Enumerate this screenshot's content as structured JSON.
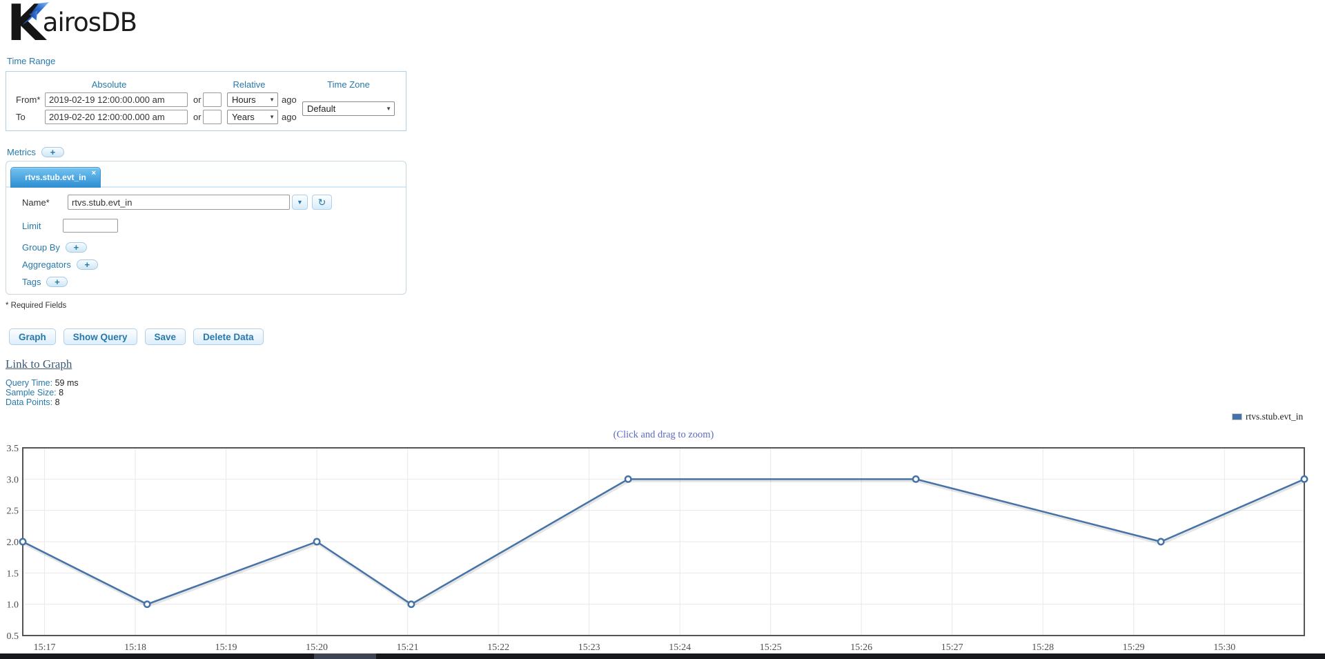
{
  "logo": {
    "k": "K",
    "airos": "airos",
    "db": "DB"
  },
  "icons": {
    "select_arrow": "▼",
    "combo_arrow": "▼",
    "refresh": "↻",
    "close": "×",
    "plus": "+"
  },
  "time_range": {
    "section_label": "Time Range",
    "columns": {
      "absolute": "Absolute",
      "relative": "Relative",
      "timezone": "Time Zone"
    },
    "from": {
      "label": "From*",
      "value": "2019-02-19 12:00:00.000 am",
      "or_label": "or",
      "relative_value": "",
      "unit": "Hours",
      "ago_label": "ago"
    },
    "to": {
      "label": "To",
      "value": "2019-02-20 12:00:00.000 am",
      "or_label": "or",
      "relative_value": "",
      "unit": "Years",
      "ago_label": "ago"
    },
    "timezone_value": "Default"
  },
  "metrics": {
    "section_label": "Metrics",
    "tab_title": "rtvs.stub.evt_in",
    "name_label": "Name*",
    "name_value": "rtvs.stub.evt_in",
    "limit_label": "Limit",
    "limit_value": "",
    "group_by_label": "Group By",
    "aggregators_label": "Aggregators",
    "tags_label": "Tags"
  },
  "required_note": "* Required Fields",
  "actions": {
    "graph": "Graph",
    "show_query": "Show Query",
    "save": "Save",
    "delete_data": "Delete Data"
  },
  "link_to_graph": "Link to Graph",
  "query_info": {
    "query_time_label": "Query Time:",
    "query_time_value": "59 ms",
    "sample_size_label": "Sample Size:",
    "sample_size_value": "8",
    "data_points_label": "Data Points:",
    "data_points_value": "8"
  },
  "chart_data": {
    "type": "line",
    "title": "(Click and drag to zoom)",
    "legend": [
      {
        "label": "rtvs.stub.evt_in",
        "color": "#4572a7"
      }
    ],
    "legend_position": "top-right",
    "grid": true,
    "x_unit": "time of day (minutes after 15:00)",
    "x_range": [
      16.76,
      30.88
    ],
    "y_range": [
      0.5,
      3.5
    ],
    "x_ticks": [
      {
        "v": 17,
        "label": "15:17"
      },
      {
        "v": 18,
        "label": "15:18"
      },
      {
        "v": 19,
        "label": "15:19"
      },
      {
        "v": 20,
        "label": "15:20"
      },
      {
        "v": 21,
        "label": "15:21"
      },
      {
        "v": 22,
        "label": "15:22"
      },
      {
        "v": 23,
        "label": "15:23"
      },
      {
        "v": 24,
        "label": "15:24"
      },
      {
        "v": 25,
        "label": "15:25"
      },
      {
        "v": 26,
        "label": "15:26"
      },
      {
        "v": 27,
        "label": "15:27"
      },
      {
        "v": 28,
        "label": "15:28"
      },
      {
        "v": 29,
        "label": "15:29"
      },
      {
        "v": 30,
        "label": "15:30"
      }
    ],
    "y_ticks": [
      {
        "v": 0.5,
        "label": "0.5"
      },
      {
        "v": 1.0,
        "label": "1.0"
      },
      {
        "v": 1.5,
        "label": "1.5"
      },
      {
        "v": 2.0,
        "label": "2.0"
      },
      {
        "v": 2.5,
        "label": "2.5"
      },
      {
        "v": 3.0,
        "label": "3.0"
      },
      {
        "v": 3.5,
        "label": "3.5"
      }
    ],
    "series": [
      {
        "name": "rtvs.stub.evt_in",
        "color": "#4572a7",
        "points": [
          [
            16.76,
            2
          ],
          [
            18.13,
            1
          ],
          [
            20.0,
            2
          ],
          [
            21.04,
            1
          ],
          [
            23.43,
            3
          ],
          [
            26.6,
            3
          ],
          [
            29.3,
            2
          ],
          [
            30.88,
            3
          ]
        ]
      }
    ]
  }
}
